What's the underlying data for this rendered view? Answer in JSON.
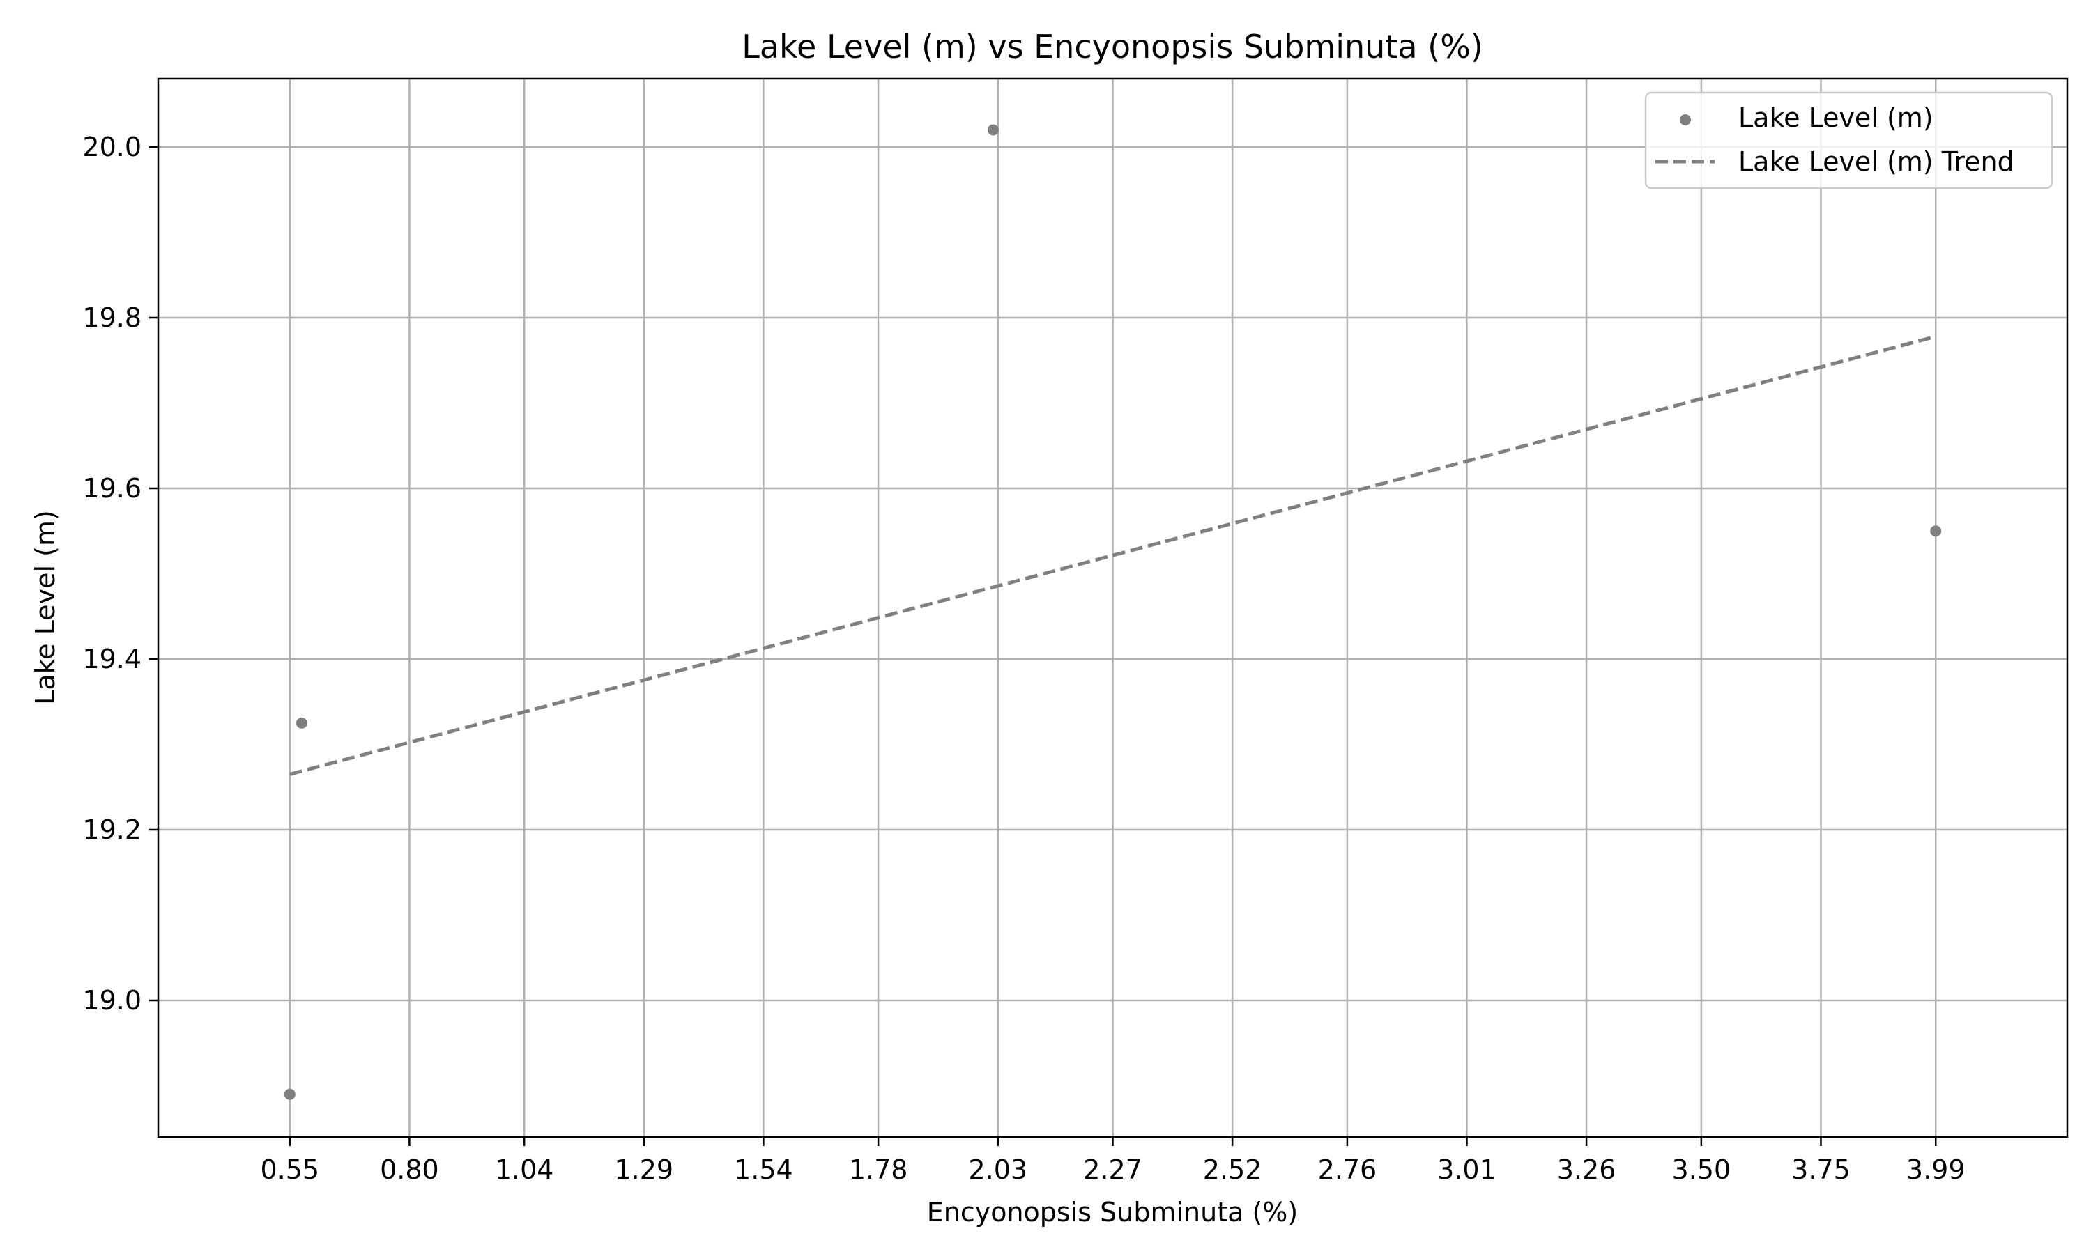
{
  "chart_data": {
    "type": "scatter",
    "title": "Lake Level (m) vs Encyonopsis Subminuta (%)",
    "xlabel": "Encyonopsis Subminuta (%)",
    "ylabel": "Lake Level (m)",
    "xlim": [
      0.275,
      4.265
    ],
    "ylim": [
      18.84,
      20.08
    ],
    "x_ticks": [
      "0.55",
      "0.80",
      "1.04",
      "1.29",
      "1.54",
      "1.78",
      "2.03",
      "2.27",
      "2.52",
      "2.76",
      "3.01",
      "3.26",
      "3.50",
      "3.75",
      "3.99"
    ],
    "y_ticks": [
      "19.0",
      "19.2",
      "19.4",
      "19.6",
      "19.8",
      "20.0"
    ],
    "grid": true,
    "legend_position": "top-right",
    "series": [
      {
        "name": "Lake Level (m)",
        "kind": "scatter",
        "color": "#808080",
        "points": [
          {
            "x": 0.55,
            "y": 18.89
          },
          {
            "x": 0.575,
            "y": 19.325
          },
          {
            "x": 2.02,
            "y": 20.02
          },
          {
            "x": 3.99,
            "y": 19.55
          }
        ]
      },
      {
        "name": "Lake Level (m) Trend",
        "kind": "line",
        "style": "dashed",
        "color": "#808080",
        "points": [
          {
            "x": 0.55,
            "y": 19.265
          },
          {
            "x": 3.99,
            "y": 19.778
          }
        ]
      }
    ]
  }
}
